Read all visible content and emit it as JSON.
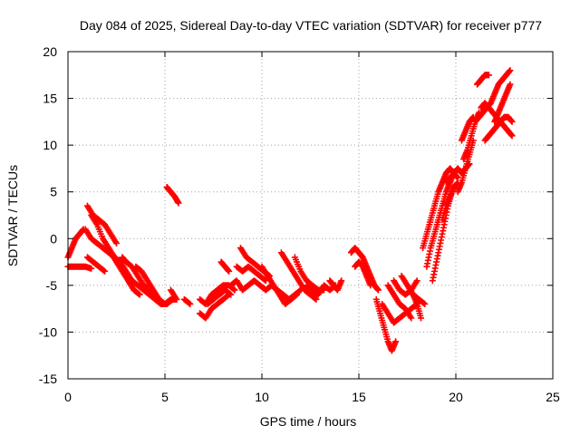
{
  "chart_data": {
    "type": "scatter",
    "title": "Day 084 of 2025, Sidereal Day-to-day VTEC variation (SDTVAR) for receiver p777",
    "xlabel": "GPS time / hours",
    "ylabel": "SDTVAR / TECUs",
    "xlim": [
      0,
      25
    ],
    "ylim": [
      -15,
      20
    ],
    "xticks": [
      "0",
      "5",
      "10",
      "15",
      "20",
      "25"
    ],
    "yticks": [
      "-15",
      "-10",
      "-5",
      "0",
      "5",
      "10",
      "15",
      "20"
    ],
    "grid": true,
    "marker": "plus",
    "color": "#ff0000",
    "series": [
      {
        "x": [
          0.0,
          0.2,
          0.4,
          0.6,
          0.8
        ],
        "y": [
          -2.0,
          -1.0,
          0.0,
          0.5,
          1.0
        ]
      },
      {
        "x": [
          0.0,
          0.3,
          0.6,
          0.9,
          1.2
        ],
        "y": [
          -3.0,
          -3.0,
          -3.0,
          -3.0,
          -3.2
        ]
      },
      {
        "x": [
          1.0,
          1.3,
          1.6,
          1.9,
          2.2,
          2.5
        ],
        "y": [
          3.5,
          2.5,
          2.0,
          1.5,
          0.5,
          -0.5
        ]
      },
      {
        "x": [
          1.2,
          1.5,
          1.8,
          2.1,
          2.4,
          2.7,
          3.0,
          3.3,
          3.6,
          3.9,
          4.2,
          4.5,
          4.8
        ],
        "y": [
          2.5,
          1.5,
          0.0,
          -1.0,
          -2.0,
          -2.5,
          -3.5,
          -4.5,
          -5.0,
          -5.5,
          -6.0,
          -6.5,
          -7.0
        ]
      },
      {
        "x": [
          1.0,
          1.3,
          1.6,
          1.9
        ],
        "y": [
          -2.0,
          -2.5,
          -3.0,
          -3.5
        ]
      },
      {
        "x": [
          0.9,
          1.2,
          1.5,
          1.8,
          2.1,
          2.4,
          2.7
        ],
        "y": [
          1.0,
          0.0,
          -0.5,
          -1.0,
          -1.5,
          -2.0,
          -2.5
        ]
      },
      {
        "x": [
          2.2,
          2.5,
          2.8,
          3.1,
          3.4,
          3.7
        ],
        "y": [
          -1.5,
          -2.5,
          -3.5,
          -4.5,
          -5.5,
          -6.0
        ]
      },
      {
        "x": [
          2.8,
          3.0,
          3.3,
          3.6,
          3.9,
          4.2,
          4.5,
          4.8,
          5.1,
          5.4
        ],
        "y": [
          -2.0,
          -2.5,
          -3.0,
          -4.0,
          -5.0,
          -5.5,
          -6.5,
          -7.0,
          -7.0,
          -6.5
        ]
      },
      {
        "x": [
          3.5,
          3.8,
          4.1,
          4.4,
          4.7,
          5.0,
          5.3,
          5.6
        ],
        "y": [
          -3.0,
          -3.5,
          -4.5,
          -5.5,
          -6.5,
          -7.0,
          -6.5,
          -6.5
        ]
      },
      {
        "x": [
          5.1,
          5.3,
          5.5,
          5.7
        ],
        "y": [
          5.5,
          5.0,
          4.5,
          3.8
        ]
      },
      {
        "x": [
          5.3,
          5.6
        ],
        "y": [
          -5.5,
          -6.5
        ]
      },
      {
        "x": [
          6.0,
          6.3
        ],
        "y": [
          -6.5,
          -7.0
        ]
      },
      {
        "x": [
          6.8,
          7.1,
          7.4,
          7.7,
          8.0,
          8.3
        ],
        "y": [
          -8.0,
          -8.5,
          -7.5,
          -7.0,
          -6.5,
          -6.0
        ]
      },
      {
        "x": [
          6.8,
          7.1,
          7.4,
          7.7,
          8.0,
          8.3,
          8.6
        ],
        "y": [
          -6.5,
          -7.0,
          -6.0,
          -5.5,
          -5.0,
          -5.0,
          -5.5
        ]
      },
      {
        "x": [
          7.2,
          7.5,
          7.8,
          8.1,
          8.4
        ],
        "y": [
          -7.0,
          -6.5,
          -6.0,
          -5.5,
          -6.0
        ]
      },
      {
        "x": [
          7.9,
          8.1,
          8.3
        ],
        "y": [
          -2.5,
          -3.0,
          -3.5
        ]
      },
      {
        "x": [
          8.4,
          8.7,
          9.0,
          9.3,
          9.6,
          9.9,
          10.2,
          10.5
        ],
        "y": [
          -5.0,
          -4.5,
          -5.5,
          -5.0,
          -4.5,
          -5.0,
          -5.5,
          -5.0
        ]
      },
      {
        "x": [
          8.9,
          9.2,
          9.5,
          9.8,
          10.1,
          10.4
        ],
        "y": [
          -1.0,
          -2.0,
          -2.5,
          -3.0,
          -3.5,
          -4.0
        ]
      },
      {
        "x": [
          8.7,
          9.0,
          9.3,
          9.6,
          9.9,
          10.2
        ],
        "y": [
          -3.0,
          -3.5,
          -3.0,
          -3.5,
          -4.0,
          -4.5
        ]
      },
      {
        "x": [
          10.0,
          10.3,
          10.6,
          10.9,
          11.2,
          11.5,
          11.8
        ],
        "y": [
          -3.0,
          -4.0,
          -5.0,
          -6.0,
          -7.0,
          -6.5,
          -6.0
        ]
      },
      {
        "x": [
          10.5,
          10.8,
          11.1,
          11.4,
          11.7,
          12.0
        ],
        "y": [
          -5.0,
          -5.5,
          -6.0,
          -6.5,
          -6.0,
          -5.5
        ]
      },
      {
        "x": [
          11.0,
          11.3,
          11.6,
          11.9,
          12.2,
          12.5,
          12.8
        ],
        "y": [
          -1.5,
          -2.5,
          -3.5,
          -4.5,
          -5.5,
          -6.0,
          -6.5
        ]
      },
      {
        "x": [
          11.7,
          12.0,
          12.3,
          12.6,
          12.9,
          13.2
        ],
        "y": [
          -2.0,
          -3.5,
          -4.5,
          -5.0,
          -5.5,
          -5.5
        ]
      },
      {
        "x": [
          12.3,
          12.6,
          12.9,
          13.2,
          13.5,
          13.8
        ],
        "y": [
          -5.0,
          -5.5,
          -6.0,
          -5.0,
          -5.5,
          -5.0
        ]
      },
      {
        "x": [
          13.5,
          13.7,
          13.9,
          14.1
        ],
        "y": [
          -4.5,
          -5.0,
          -5.5,
          -4.5
        ]
      },
      {
        "x": [
          14.6,
          14.8,
          15.0,
          15.2,
          15.4,
          15.6,
          15.8,
          16.0
        ],
        "y": [
          -1.5,
          -1.0,
          -1.5,
          -2.0,
          -3.0,
          -4.0,
          -5.0,
          -5.5
        ]
      },
      {
        "x": [
          14.8,
          15.0,
          15.2,
          15.4,
          15.6
        ],
        "y": [
          -3.0,
          -2.5,
          -3.0,
          -4.0,
          -5.0
        ]
      },
      {
        "x": [
          15.9,
          16.1,
          16.3,
          16.5,
          16.7,
          16.9
        ],
        "y": [
          -6.5,
          -8.0,
          -9.5,
          -11.0,
          -12.0,
          -11.0
        ]
      },
      {
        "x": [
          16.2,
          16.5,
          16.8,
          17.1,
          17.4,
          17.7,
          18.0
        ],
        "y": [
          -7.0,
          -8.0,
          -9.0,
          -8.5,
          -8.0,
          -7.5,
          -7.0
        ]
      },
      {
        "x": [
          16.5,
          16.8,
          17.1,
          17.4,
          17.7
        ],
        "y": [
          -5.0,
          -6.0,
          -7.0,
          -7.5,
          -8.5
        ]
      },
      {
        "x": [
          16.8,
          17.1,
          17.4,
          17.7,
          18.0
        ],
        "y": [
          -4.5,
          -5.5,
          -6.0,
          -5.5,
          -4.5
        ]
      },
      {
        "x": [
          17.2,
          17.5,
          17.8,
          18.1,
          18.4
        ],
        "y": [
          -4.0,
          -5.0,
          -6.0,
          -6.5,
          -7.0
        ]
      },
      {
        "x": [
          17.8,
          18.0,
          18.2
        ],
        "y": [
          -6.0,
          -7.0,
          -8.5
        ]
      },
      {
        "x": [
          18.3,
          18.5,
          18.7,
          18.9,
          19.1,
          19.3,
          19.5,
          19.7,
          19.9,
          20.1
        ],
        "y": [
          -1.0,
          0.5,
          2.0,
          3.5,
          5.0,
          6.0,
          7.0,
          7.5,
          7.0,
          6.5
        ]
      },
      {
        "x": [
          18.5,
          18.7,
          18.9,
          19.1,
          19.3,
          19.5,
          19.7,
          19.9
        ],
        "y": [
          -3.0,
          -1.0,
          0.5,
          2.0,
          3.5,
          5.0,
          6.0,
          7.0
        ]
      },
      {
        "x": [
          18.8,
          19.0,
          19.2,
          19.4,
          19.6,
          19.8
        ],
        "y": [
          -4.5,
          -2.5,
          -0.5,
          1.5,
          3.5,
          5.0
        ]
      },
      {
        "x": [
          19.3,
          19.5,
          19.7,
          19.9,
          20.1
        ],
        "y": [
          2.0,
          3.5,
          4.5,
          5.5,
          6.0
        ]
      },
      {
        "x": [
          20.1,
          20.3,
          20.5,
          20.7,
          20.9
        ],
        "y": [
          5.0,
          6.0,
          7.5,
          9.0,
          10.5
        ]
      },
      {
        "x": [
          19.5,
          19.7,
          19.9,
          20.1,
          20.3,
          20.5,
          20.7
        ],
        "y": [
          6.0,
          6.5,
          7.0,
          7.5,
          7.0,
          7.5,
          8.0
        ]
      },
      {
        "x": [
          20.3,
          20.5,
          20.7,
          20.9
        ],
        "y": [
          10.5,
          11.5,
          12.5,
          13.0
        ]
      },
      {
        "x": [
          21.0,
          21.2,
          21.4,
          21.6,
          21.8,
          22.0,
          22.2,
          22.4,
          22.6,
          22.8
        ],
        "y": [
          12.5,
          13.0,
          13.5,
          14.0,
          14.5,
          15.5,
          16.5,
          17.0,
          17.5,
          18.0
        ]
      },
      {
        "x": [
          21.3,
          21.5,
          21.7,
          21.9,
          22.1,
          22.3,
          22.5,
          22.7,
          22.9
        ],
        "y": [
          14.0,
          14.5,
          14.0,
          13.5,
          13.0,
          12.5,
          12.0,
          11.5,
          11.0
        ]
      },
      {
        "x": [
          21.5,
          21.7,
          21.9,
          22.1,
          22.3,
          22.5,
          22.7,
          22.9
        ],
        "y": [
          10.5,
          11.0,
          11.5,
          12.0,
          12.5,
          13.0,
          13.0,
          12.5
        ]
      },
      {
        "x": [
          21.1,
          21.3,
          21.5,
          21.7
        ],
        "y": [
          16.5,
          17.0,
          17.5,
          17.5
        ]
      },
      {
        "x": [
          22.0,
          22.2,
          22.4,
          22.6,
          22.8
        ],
        "y": [
          12.5,
          13.5,
          14.5,
          15.5,
          16.5
        ]
      },
      {
        "x": [
          20.4,
          20.6,
          20.8,
          21.0,
          21.2
        ],
        "y": [
          8.5,
          9.5,
          11.0,
          12.5,
          13.5
        ]
      }
    ]
  }
}
